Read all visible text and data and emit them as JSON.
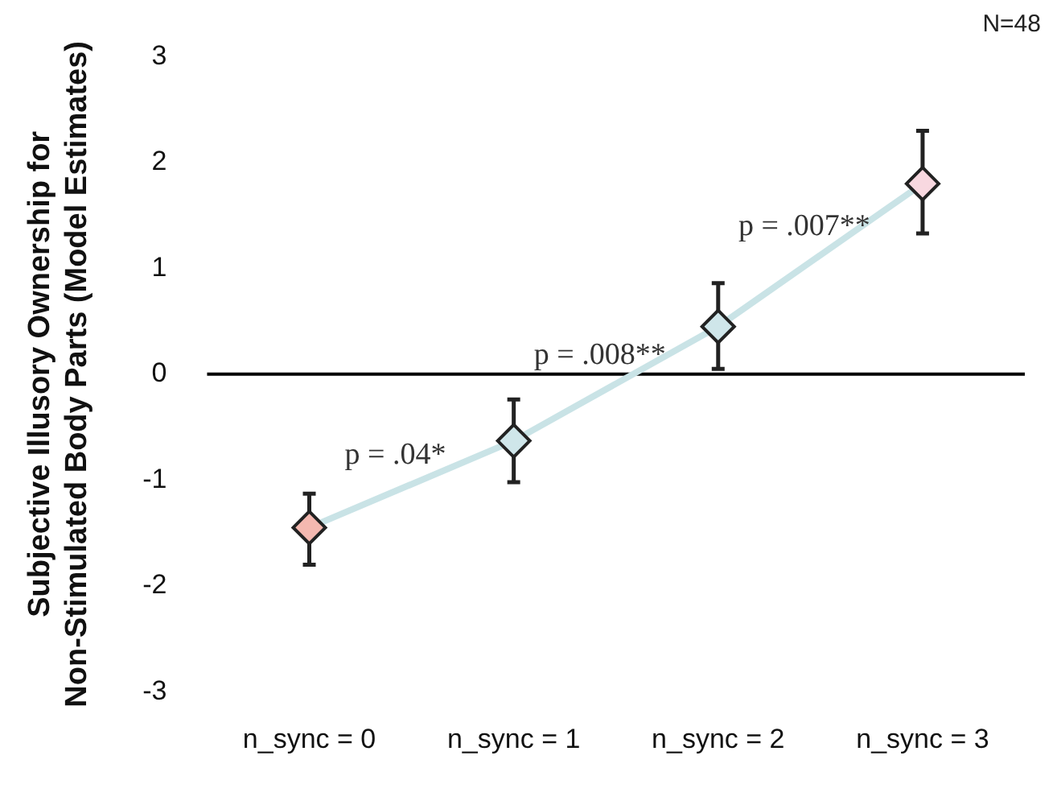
{
  "chart_data": {
    "type": "line",
    "subtitle": "N=48",
    "ylabel": "Subjective Illusory Ownership for Non-Stimulated Body Parts (Model Estimates)",
    "categories": [
      "n_sync = 0",
      "n_sync = 1",
      "n_sync = 2",
      "n_sync = 3"
    ],
    "series": [
      {
        "color": "#c9e3e6",
        "colors": [
          "#f4b8b0",
          "#cfe6ea",
          "#cfe6ea",
          "#f8d8e0"
        ],
        "values": [
          -1.45,
          -0.63,
          0.45,
          1.8
        ],
        "errors": [
          [
            -1.8,
            -1.13
          ],
          [
            -1.02,
            -0.24
          ],
          [
            0.05,
            0.86
          ],
          [
            1.33,
            2.3
          ]
        ]
      }
    ],
    "annotations": [
      "p = .04*",
      "p = .008**",
      "p = .007**"
    ],
    "ylim": [
      -3,
      3
    ],
    "yticks": [
      -3,
      -2,
      -1,
      0,
      1,
      2,
      3
    ],
    "ref_lines": [
      {
        "axis": "y",
        "value": 0
      }
    ],
    "grid": false,
    "legend": false,
    "marker": "diamond",
    "line_style": "solid"
  }
}
